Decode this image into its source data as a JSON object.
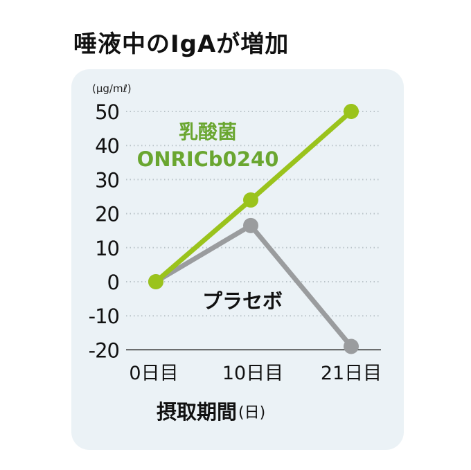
{
  "chart_data": {
    "type": "line",
    "title": "唾液中のIgAが増加",
    "ylabel": "(μg/mℓ)",
    "xlabel": "摂取期間",
    "xlabel_unit": "(日)",
    "categories": [
      "0日目",
      "10日目",
      "21日目"
    ],
    "x": [
      0,
      10,
      21
    ],
    "ylim": [
      -20,
      50
    ],
    "yticks": [
      "50",
      "40",
      "30",
      "20",
      "10",
      "0",
      "-10",
      "-20"
    ],
    "ytick_values": [
      50,
      40,
      30,
      20,
      10,
      0,
      -10,
      -20
    ],
    "grid": true,
    "series": [
      {
        "name": "乳酸菌",
        "name2": "ONRICb0240",
        "color": "#9ac31c",
        "label_color": "#6aa630",
        "values": [
          0,
          24,
          50
        ]
      },
      {
        "name": "プラセボ",
        "color": "#9a9c9e",
        "label_color": "#111111",
        "values": [
          0,
          16.5,
          -19
        ]
      }
    ]
  }
}
